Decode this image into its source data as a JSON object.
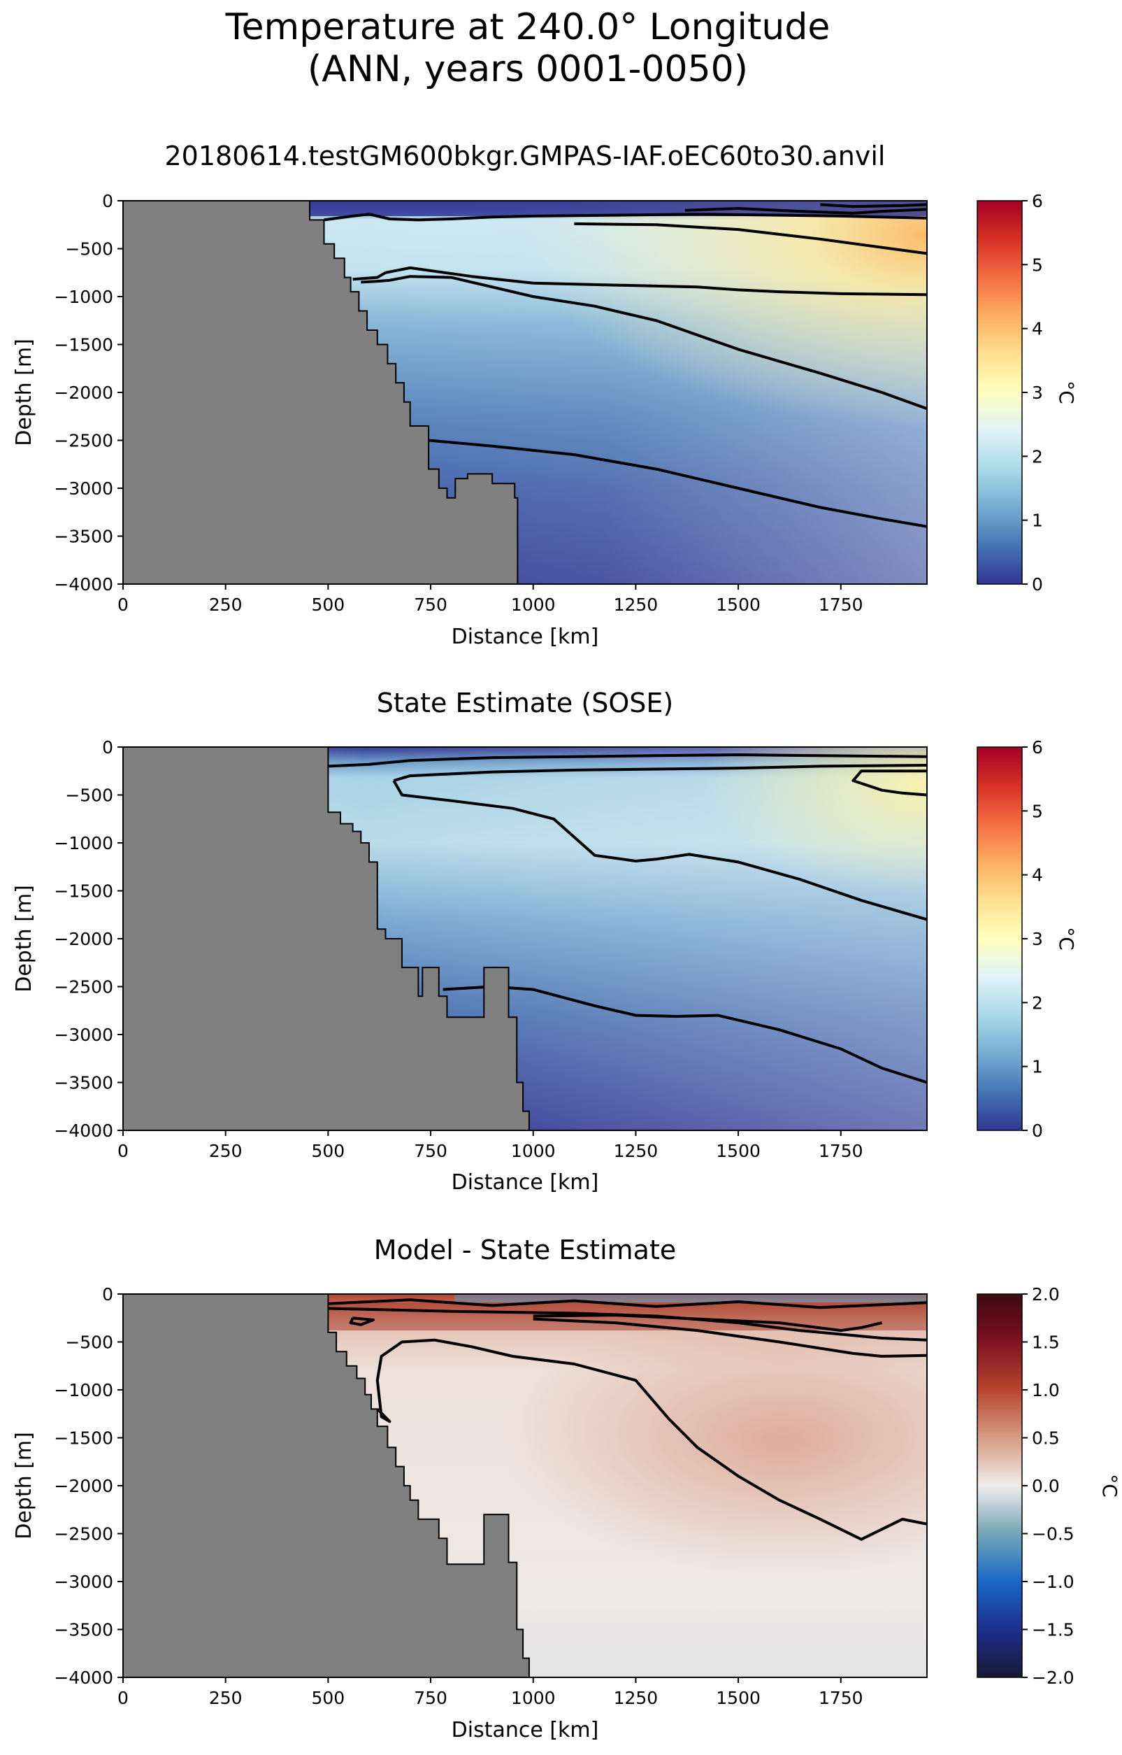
{
  "figure": {
    "suptitle_line1": "Temperature at 240.0° Longitude",
    "suptitle_line2": "(ANN, years 0001-0050)"
  },
  "chart_data": [
    {
      "type": "heatmap",
      "title": "20180614.testGM600bkgr.GMPAS-IAF.oEC60to30.anvil",
      "xlabel": "Distance [km]",
      "ylabel": "Depth [m]",
      "xlim": [
        0,
        1960
      ],
      "ylim": [
        -4000,
        0
      ],
      "xticks": [
        0,
        250,
        500,
        750,
        1000,
        1250,
        1500,
        1750
      ],
      "yticks": [
        0,
        -500,
        -1000,
        -1500,
        -2000,
        -2500,
        -3000,
        -3500,
        -4000
      ],
      "colorbar": {
        "label": "°C",
        "colormap": "RdYlBu_r",
        "vmin": 0,
        "vmax": 6,
        "ticks": [
          0,
          1,
          2,
          3,
          4,
          5,
          6
        ]
      },
      "land_mask_color": "#808080",
      "bathymetry": [
        [
          0,
          -4000
        ],
        [
          0,
          0
        ],
        [
          455,
          0
        ],
        [
          455,
          -200
        ],
        [
          490,
          -200
        ],
        [
          490,
          -450
        ],
        [
          515,
          -450
        ],
        [
          515,
          -600
        ],
        [
          540,
          -600
        ],
        [
          540,
          -800
        ],
        [
          555,
          -800
        ],
        [
          555,
          -950
        ],
        [
          575,
          -950
        ],
        [
          575,
          -1150
        ],
        [
          595,
          -1150
        ],
        [
          595,
          -1350
        ],
        [
          620,
          -1350
        ],
        [
          620,
          -1500
        ],
        [
          645,
          -1500
        ],
        [
          645,
          -1700
        ],
        [
          665,
          -1700
        ],
        [
          665,
          -1900
        ],
        [
          685,
          -1900
        ],
        [
          685,
          -2100
        ],
        [
          700,
          -2100
        ],
        [
          700,
          -2350
        ],
        [
          745,
          -2350
        ],
        [
          745,
          -2800
        ],
        [
          770,
          -2800
        ],
        [
          770,
          -3000
        ],
        [
          790,
          -3000
        ],
        [
          790,
          -3100
        ],
        [
          810,
          -3100
        ],
        [
          810,
          -2900
        ],
        [
          840,
          -2900
        ],
        [
          840,
          -2850
        ],
        [
          900,
          -2850
        ],
        [
          900,
          -2950
        ],
        [
          955,
          -2950
        ],
        [
          955,
          -3100
        ],
        [
          962,
          -3100
        ],
        [
          962,
          -4000
        ]
      ],
      "contours": [
        [
          [
            490,
            -200
          ],
          [
            560,
            -160
          ],
          [
            600,
            -140
          ],
          [
            650,
            -190
          ],
          [
            720,
            -200
          ],
          [
            800,
            -190
          ],
          [
            900,
            -170
          ],
          [
            1000,
            -160
          ],
          [
            1200,
            -150
          ],
          [
            1400,
            -140
          ],
          [
            1600,
            -150
          ],
          [
            1750,
            -160
          ],
          [
            1850,
            -170
          ],
          [
            1960,
            -180
          ]
        ],
        [
          [
            1100,
            -240
          ],
          [
            1300,
            -250
          ],
          [
            1500,
            -300
          ],
          [
            1700,
            -400
          ],
          [
            1960,
            -550
          ]
        ],
        [
          [
            1370,
            -100
          ],
          [
            1500,
            -80
          ],
          [
            1650,
            -110
          ],
          [
            1780,
            -130
          ],
          [
            1850,
            -110
          ],
          [
            1960,
            -90
          ]
        ],
        [
          [
            1700,
            -40
          ],
          [
            1780,
            -60
          ],
          [
            1900,
            -50
          ],
          [
            1960,
            -40
          ]
        ],
        [
          [
            560,
            -820
          ],
          [
            620,
            -800
          ],
          [
            640,
            -750
          ],
          [
            700,
            -700
          ],
          [
            850,
            -790
          ],
          [
            1000,
            -860
          ],
          [
            1200,
            -880
          ],
          [
            1400,
            -900
          ],
          [
            1500,
            -930
          ],
          [
            1600,
            -950
          ],
          [
            1750,
            -970
          ],
          [
            1960,
            -980
          ]
        ],
        [
          [
            580,
            -850
          ],
          [
            620,
            -840
          ],
          [
            650,
            -830
          ],
          [
            700,
            -790
          ],
          [
            800,
            -800
          ],
          [
            900,
            -900
          ],
          [
            1000,
            -1000
          ],
          [
            1150,
            -1100
          ],
          [
            1300,
            -1250
          ],
          [
            1500,
            -1550
          ],
          [
            1700,
            -1800
          ],
          [
            1850,
            -2000
          ],
          [
            1960,
            -2170
          ]
        ],
        [
          [
            745,
            -2500
          ],
          [
            900,
            -2560
          ],
          [
            1100,
            -2650
          ],
          [
            1300,
            -2800
          ],
          [
            1500,
            -3000
          ],
          [
            1700,
            -3200
          ],
          [
            1850,
            -3320
          ],
          [
            1960,
            -3400
          ]
        ]
      ]
    },
    {
      "type": "heatmap",
      "title": "State Estimate (SOSE)",
      "xlabel": "Distance [km]",
      "ylabel": "Depth [m]",
      "xlim": [
        0,
        1960
      ],
      "ylim": [
        -4000,
        0
      ],
      "xticks": [
        0,
        250,
        500,
        750,
        1000,
        1250,
        1500,
        1750
      ],
      "yticks": [
        0,
        -500,
        -1000,
        -1500,
        -2000,
        -2500,
        -3000,
        -3500,
        -4000
      ],
      "colorbar": {
        "label": "°C",
        "colormap": "RdYlBu_r",
        "vmin": 0,
        "vmax": 6,
        "ticks": [
          0,
          1,
          2,
          3,
          4,
          5,
          6
        ]
      },
      "land_mask_color": "#808080",
      "bathymetry": [
        [
          0,
          -4000
        ],
        [
          0,
          0
        ],
        [
          500,
          0
        ],
        [
          500,
          -680
        ],
        [
          530,
          -680
        ],
        [
          530,
          -800
        ],
        [
          560,
          -800
        ],
        [
          560,
          -880
        ],
        [
          580,
          -880
        ],
        [
          580,
          -1000
        ],
        [
          600,
          -1000
        ],
        [
          600,
          -1200
        ],
        [
          620,
          -1200
        ],
        [
          620,
          -1900
        ],
        [
          640,
          -1900
        ],
        [
          640,
          -2000
        ],
        [
          680,
          -2000
        ],
        [
          680,
          -2300
        ],
        [
          720,
          -2300
        ],
        [
          720,
          -2600
        ],
        [
          730,
          -2600
        ],
        [
          730,
          -2300
        ],
        [
          770,
          -2300
        ],
        [
          770,
          -2600
        ],
        [
          790,
          -2600
        ],
        [
          790,
          -2820
        ],
        [
          880,
          -2820
        ],
        [
          880,
          -2300
        ],
        [
          940,
          -2300
        ],
        [
          940,
          -2820
        ],
        [
          960,
          -2820
        ],
        [
          960,
          -3500
        ],
        [
          975,
          -3500
        ],
        [
          975,
          -3800
        ],
        [
          990,
          -3800
        ],
        [
          990,
          -4000
        ]
      ],
      "contours": [
        [
          [
            500,
            -200
          ],
          [
            600,
            -180
          ],
          [
            700,
            -140
          ],
          [
            900,
            -110
          ],
          [
            1100,
            -100
          ],
          [
            1300,
            -90
          ],
          [
            1500,
            -80
          ],
          [
            1700,
            -90
          ],
          [
            1960,
            -100
          ]
        ],
        [
          [
            1960,
            -250
          ],
          [
            1800,
            -250
          ],
          [
            1780,
            -350
          ],
          [
            1850,
            -450
          ],
          [
            1900,
            -480
          ],
          [
            1960,
            -500
          ]
        ],
        [
          [
            660,
            -350
          ],
          [
            700,
            -300
          ],
          [
            900,
            -260
          ],
          [
            1100,
            -240
          ],
          [
            1300,
            -230
          ],
          [
            1500,
            -220
          ],
          [
            1700,
            -200
          ],
          [
            1960,
            -190
          ]
        ],
        [
          [
            660,
            -350
          ],
          [
            680,
            -500
          ],
          [
            800,
            -560
          ],
          [
            950,
            -640
          ],
          [
            1050,
            -750
          ],
          [
            1150,
            -1130
          ],
          [
            1250,
            -1190
          ],
          [
            1300,
            -1170
          ],
          [
            1380,
            -1120
          ],
          [
            1500,
            -1200
          ],
          [
            1650,
            -1380
          ],
          [
            1800,
            -1600
          ],
          [
            1960,
            -1800
          ]
        ],
        [
          [
            780,
            -2530
          ],
          [
            900,
            -2500
          ],
          [
            1000,
            -2530
          ],
          [
            1150,
            -2700
          ],
          [
            1250,
            -2800
          ],
          [
            1350,
            -2810
          ],
          [
            1450,
            -2800
          ],
          [
            1600,
            -2950
          ],
          [
            1750,
            -3150
          ],
          [
            1850,
            -3350
          ],
          [
            1960,
            -3500
          ]
        ]
      ]
    },
    {
      "type": "heatmap",
      "title": "Model - State Estimate",
      "xlabel": "Distance [km]",
      "ylabel": "Depth [m]",
      "xlim": [
        0,
        1960
      ],
      "ylim": [
        -4000,
        0
      ],
      "xticks": [
        0,
        250,
        500,
        750,
        1000,
        1250,
        1500,
        1750
      ],
      "yticks": [
        0,
        -500,
        -1000,
        -1500,
        -2000,
        -2500,
        -3000,
        -3500,
        -4000
      ],
      "colorbar": {
        "label": "°C",
        "colormap": "RdBu_r (balance)",
        "vmin": -2,
        "vmax": 2,
        "ticks": [
          -2.0,
          -1.5,
          -1.0,
          -0.5,
          0.0,
          0.5,
          1.0,
          1.5,
          2.0
        ]
      },
      "land_mask_color": "#808080",
      "bathymetry": [
        [
          0,
          -4000
        ],
        [
          0,
          0
        ],
        [
          500,
          0
        ],
        [
          500,
          -400
        ],
        [
          520,
          -400
        ],
        [
          520,
          -600
        ],
        [
          545,
          -600
        ],
        [
          545,
          -750
        ],
        [
          570,
          -750
        ],
        [
          570,
          -880
        ],
        [
          590,
          -880
        ],
        [
          590,
          -1050
        ],
        [
          605,
          -1050
        ],
        [
          605,
          -1200
        ],
        [
          620,
          -1200
        ],
        [
          620,
          -1380
        ],
        [
          645,
          -1380
        ],
        [
          645,
          -1600
        ],
        [
          665,
          -1600
        ],
        [
          665,
          -1800
        ],
        [
          685,
          -1800
        ],
        [
          685,
          -2000
        ],
        [
          700,
          -2000
        ],
        [
          700,
          -2150
        ],
        [
          720,
          -2150
        ],
        [
          720,
          -2350
        ],
        [
          770,
          -2350
        ],
        [
          770,
          -2550
        ],
        [
          790,
          -2550
        ],
        [
          790,
          -2820
        ],
        [
          880,
          -2820
        ],
        [
          880,
          -2300
        ],
        [
          940,
          -2300
        ],
        [
          940,
          -2800
        ],
        [
          960,
          -2800
        ],
        [
          960,
          -3500
        ],
        [
          975,
          -3500
        ],
        [
          975,
          -3800
        ],
        [
          990,
          -3800
        ],
        [
          990,
          -4000
        ]
      ],
      "contours": [
        [
          [
            500,
            -100
          ],
          [
            700,
            -60
          ],
          [
            900,
            -120
          ],
          [
            1100,
            -70
          ],
          [
            1300,
            -130
          ],
          [
            1500,
            -80
          ],
          [
            1700,
            -140
          ],
          [
            1960,
            -90
          ]
        ],
        [
          [
            500,
            -150
          ],
          [
            800,
            -180
          ],
          [
            1100,
            -200
          ],
          [
            1300,
            -230
          ],
          [
            1500,
            -300
          ],
          [
            1650,
            -380
          ],
          [
            1750,
            -420
          ],
          [
            1850,
            -460
          ],
          [
            1960,
            -480
          ]
        ],
        [
          [
            1000,
            -230
          ],
          [
            1200,
            -220
          ],
          [
            1400,
            -260
          ],
          [
            1600,
            -300
          ],
          [
            1750,
            -380
          ],
          [
            1800,
            -350
          ],
          [
            1850,
            -300
          ]
        ],
        [
          [
            560,
            -250
          ],
          [
            610,
            -270
          ],
          [
            580,
            -320
          ],
          [
            555,
            -300
          ],
          [
            560,
            -250
          ]
        ],
        [
          [
            620,
            -1200
          ],
          [
            650,
            -1330
          ],
          [
            630,
            -1280
          ],
          [
            620,
            -900
          ],
          [
            630,
            -650
          ],
          [
            680,
            -500
          ],
          [
            760,
            -480
          ],
          [
            850,
            -550
          ],
          [
            950,
            -650
          ],
          [
            1100,
            -730
          ],
          [
            1250,
            -900
          ],
          [
            1330,
            -1300
          ],
          [
            1400,
            -1600
          ],
          [
            1500,
            -1900
          ],
          [
            1600,
            -2150
          ],
          [
            1700,
            -2350
          ],
          [
            1800,
            -2560
          ],
          [
            1900,
            -2350
          ],
          [
            1960,
            -2400
          ]
        ],
        [
          [
            1960,
            -640
          ],
          [
            1850,
            -650
          ],
          [
            1780,
            -620
          ],
          [
            1600,
            -500
          ],
          [
            1400,
            -380
          ],
          [
            1200,
            -300
          ],
          [
            1000,
            -260
          ]
        ]
      ]
    }
  ]
}
